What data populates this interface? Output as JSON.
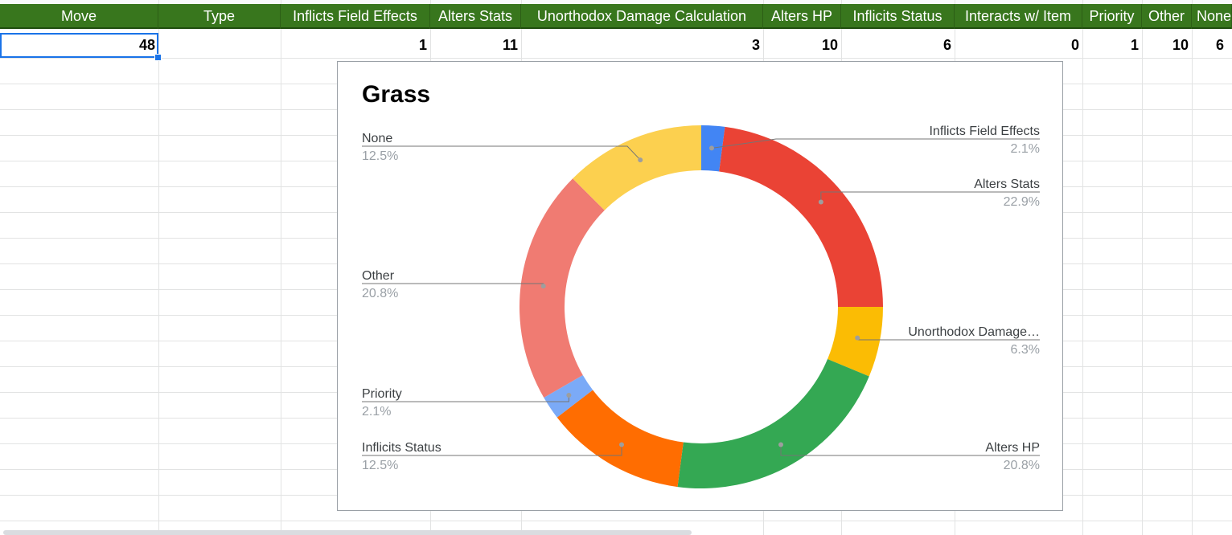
{
  "sheet": {
    "headers": [
      "Move",
      "Type",
      "Inflicts Field Effects",
      "Alters Stats",
      "Unorthodox Damage Calculation",
      "Alters HP",
      "Inflicits Status",
      "Interacts w/ Item",
      "Priority",
      "Other",
      "None"
    ],
    "row1": [
      "48",
      "",
      "1",
      "11",
      "3",
      "10",
      "6",
      "0",
      "1",
      "10",
      "6"
    ]
  },
  "colors": {
    "header_bg": "#38761d",
    "selection": "#1a73e8"
  },
  "chart_data": {
    "type": "pie",
    "title": "Grass",
    "donut": true,
    "categories": [
      "Inflicts Field Effects",
      "Alters Stats",
      "Unorthodox Damage…",
      "Alters HP",
      "Inflicits Status",
      "Priority",
      "Other",
      "None"
    ],
    "values": [
      1,
      11,
      3,
      10,
      6,
      1,
      10,
      6
    ],
    "percent_labels": [
      "2.1%",
      "22.9%",
      "6.3%",
      "20.8%",
      "12.5%",
      "2.1%",
      "20.8%",
      "12.5%"
    ],
    "colors": [
      "#4285f4",
      "#ea4335",
      "#fbbc04",
      "#34a853",
      "#ff6d01",
      "#7baaf7",
      "#f07b72",
      "#fcd04f"
    ],
    "legend": "labels-on-sides"
  }
}
